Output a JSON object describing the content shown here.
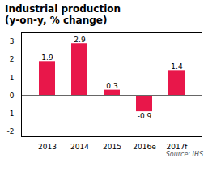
{
  "chart_data": {
    "type": "bar",
    "title": "Industrial production",
    "subtitle": "(y-on-y, % change)",
    "source": "Source: IHS",
    "categories": [
      "2013",
      "2014",
      "2015",
      "2016e",
      "2017f"
    ],
    "values": [
      1.9,
      2.9,
      0.3,
      -0.9,
      1.4
    ],
    "color": "#e8174a",
    "ylim": [
      -2.3,
      3.5
    ],
    "yticks": [
      -2,
      -1,
      0,
      1,
      2,
      3
    ],
    "data_labels": true,
    "grid": false
  }
}
